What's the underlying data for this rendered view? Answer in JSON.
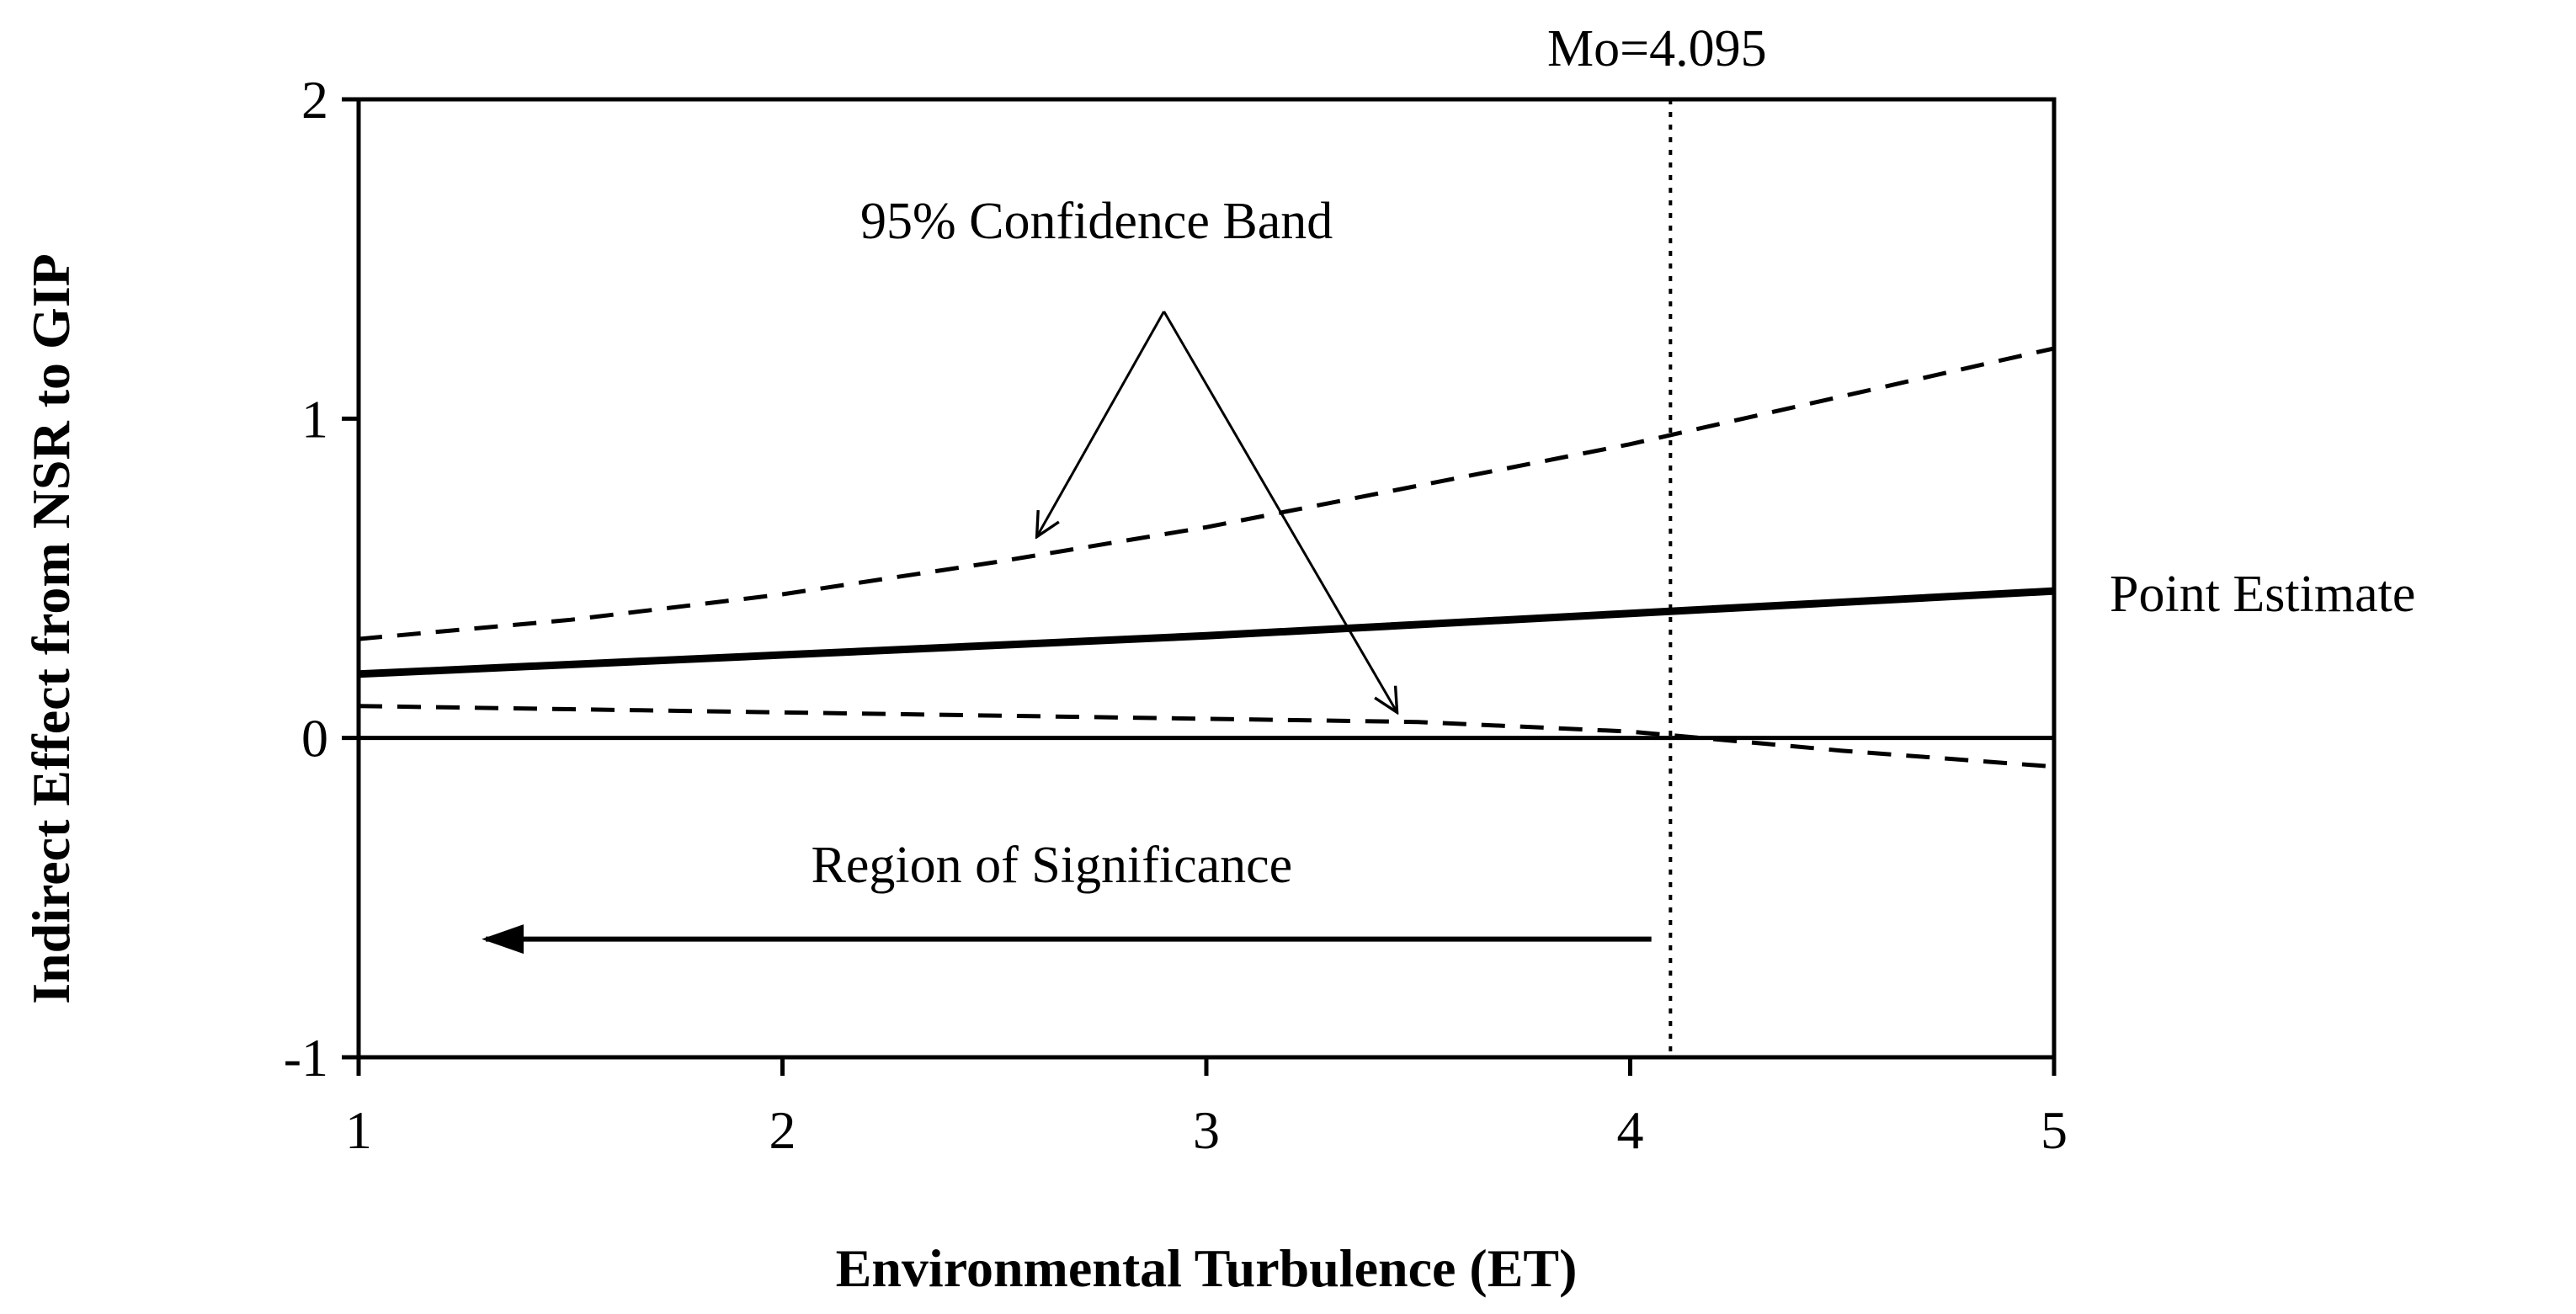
{
  "chart_data": {
    "type": "line",
    "xlabel": "Environmental Turbulence (ET)",
    "ylabel": "Indirect Effect from NSR to GIP",
    "xlim": [
      1,
      5
    ],
    "ylim": [
      -1,
      2
    ],
    "x_ticks": [
      1,
      2,
      3,
      4,
      5
    ],
    "y_ticks": [
      -1,
      0,
      1,
      2
    ],
    "x_tick_labels": [
      "1",
      "2",
      "3",
      "4",
      "5"
    ],
    "y_tick_labels": [
      "-1",
      "0",
      "1",
      "2"
    ],
    "grid": false,
    "series": [
      {
        "role": "upper",
        "style": "dashed",
        "x": [
          1,
          1.5,
          2,
          2.5,
          3,
          3.5,
          4,
          4.5,
          5
        ],
        "y": [
          0.31,
          0.37,
          0.45,
          0.55,
          0.66,
          0.79,
          0.92,
          1.07,
          1.22
        ]
      },
      {
        "role": "estimate",
        "style": "solid",
        "x": [
          1,
          2,
          3,
          4,
          5
        ],
        "y": [
          0.2,
          0.26,
          0.32,
          0.39,
          0.46
        ]
      },
      {
        "role": "lower",
        "style": "dashed",
        "x": [
          1,
          1.5,
          2,
          2.5,
          3,
          3.5,
          4,
          4.5,
          5
        ],
        "y": [
          0.1,
          0.09,
          0.08,
          0.07,
          0.06,
          0.05,
          0.02,
          -0.04,
          -0.09
        ]
      }
    ],
    "reference_line": {
      "axis": "y",
      "value": 0
    },
    "moderator_line": {
      "axis": "x",
      "value": 4.095,
      "label": "Mo=4.095",
      "style": "dotted"
    },
    "annotations": {
      "confidence_band": {
        "text": "95% Confidence Band",
        "anchor": [
          2.9,
          1.39
        ],
        "arrow_targets": [
          [
            2.6,
            0.63
          ],
          [
            3.45,
            0.08
          ]
        ]
      },
      "point_estimate": {
        "text": "Point Estimate"
      },
      "region_of_significance": {
        "text": "Region of Significance",
        "arrow_from": [
          4.05,
          -0.63
        ],
        "arrow_to": [
          1.3,
          -0.63
        ]
      }
    }
  }
}
